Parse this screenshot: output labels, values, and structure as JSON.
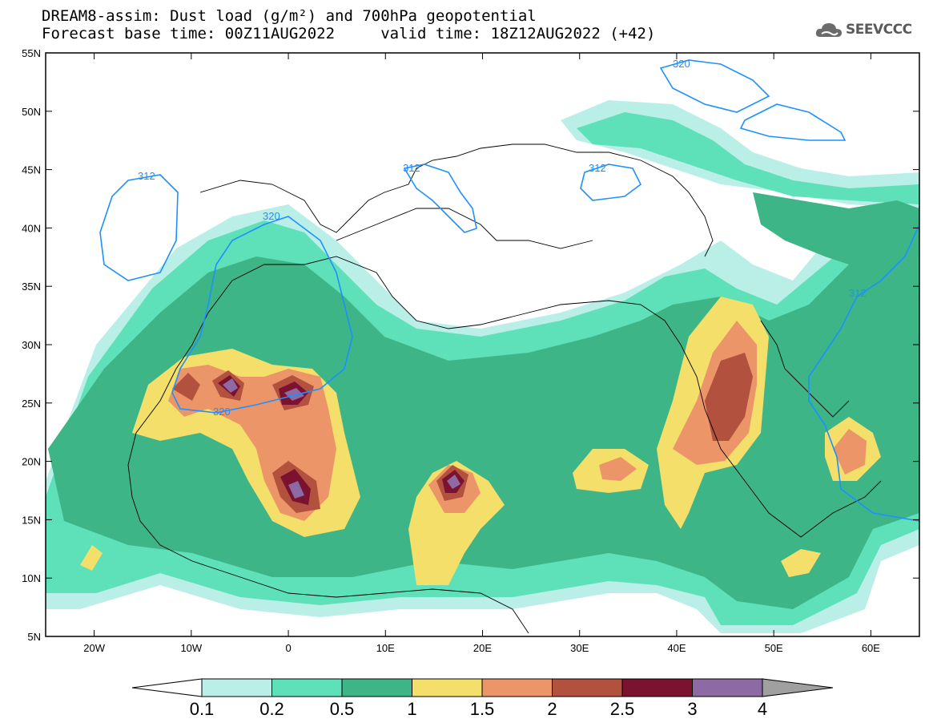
{
  "title": {
    "line1": "DREAM8-assim: Dust load (g/m²) and 700hPa geopotential",
    "line2": "Forecast base time: 00Z11AUG2022     valid time: 18Z12AUG2022 (+42)"
  },
  "logo": {
    "text": "SEEVCCC",
    "icon": "cloud-icon"
  },
  "map": {
    "projection": "lat-lon",
    "lon_range": [
      -25,
      65
    ],
    "lat_range": [
      5,
      55
    ],
    "lat_labels": [
      "55N",
      "50N",
      "45N",
      "40N",
      "35N",
      "30N",
      "25N",
      "20N",
      "15N",
      "10N",
      "5N"
    ],
    "lon_labels": [
      "20W",
      "10W",
      "0",
      "10E",
      "20E",
      "30E",
      "40E",
      "50E",
      "60E"
    ],
    "contour_labels": [
      "320",
      "312",
      "312",
      "312",
      "320",
      "320",
      "312"
    ]
  },
  "colorbar": {
    "labels": [
      "0.1",
      "0.2",
      "0.5",
      "1",
      "1.5",
      "2",
      "2.5",
      "3",
      "4"
    ],
    "colors": [
      "#b9efe7",
      "#5ee0b8",
      "#3eb587",
      "#f4df6b",
      "#ec9569",
      "#b3513f",
      "#7a1230",
      "#8d6aa3",
      "#a0a0a0"
    ]
  }
}
